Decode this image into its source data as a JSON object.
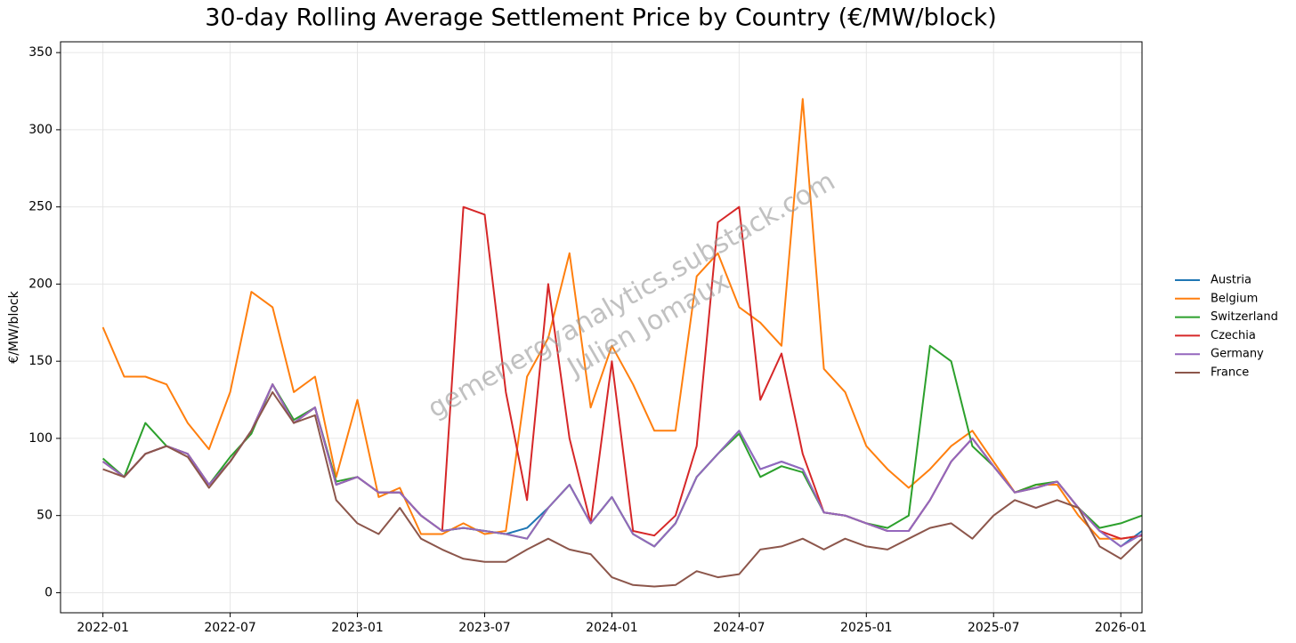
{
  "chart_data": {
    "type": "line",
    "title": "30-day Rolling Average Settlement Price by Country (€/MW/block)",
    "y_label": "€/MW/block",
    "watermark": [
      "gemenergyanalytics.substack.com",
      "Julien Jomaux"
    ],
    "x": [
      "2022-01",
      "2022-02",
      "2022-03",
      "2022-04",
      "2022-05",
      "2022-06",
      "2022-07",
      "2022-08",
      "2022-09",
      "2022-10",
      "2022-11",
      "2022-12",
      "2023-01",
      "2023-02",
      "2023-03",
      "2023-04",
      "2023-05",
      "2023-06",
      "2023-07",
      "2023-08",
      "2023-09",
      "2023-10",
      "2023-11",
      "2023-12",
      "2024-01",
      "2024-02",
      "2024-03",
      "2024-04",
      "2024-05",
      "2024-06",
      "2024-07",
      "2024-08",
      "2024-09",
      "2024-10",
      "2024-11",
      "2024-12",
      "2025-01",
      "2025-02",
      "2025-03",
      "2025-04",
      "2025-05",
      "2025-06",
      "2025-07",
      "2025-08",
      "2025-09",
      "2025-10",
      "2025-11",
      "2025-12",
      "2026-01",
      "2026-02"
    ],
    "series": [
      {
        "name": "Austria",
        "color": "#1f77b4",
        "values": [
          85,
          75,
          90,
          95,
          90,
          70,
          85,
          105,
          135,
          110,
          120,
          70,
          75,
          65,
          65,
          50,
          40,
          42,
          40,
          38,
          42,
          55,
          70,
          45,
          62,
          38,
          30,
          45,
          75,
          90,
          105,
          80,
          85,
          80,
          52,
          50,
          45,
          40,
          40,
          60,
          85,
          100,
          82,
          65,
          68,
          72,
          55,
          40,
          30,
          40
        ]
      },
      {
        "name": "Belgium",
        "color": "#ff7f0e",
        "values": [
          172,
          140,
          140,
          135,
          110,
          93,
          130,
          195,
          185,
          130,
          140,
          75,
          125,
          62,
          68,
          38,
          38,
          45,
          38,
          40,
          140,
          165,
          220,
          120,
          160,
          135,
          105,
          105,
          205,
          220,
          185,
          175,
          160,
          320,
          145,
          130,
          95,
          80,
          68,
          80,
          95,
          105,
          85,
          65,
          70,
          70,
          50,
          35,
          35,
          37
        ]
      },
      {
        "name": "Switzerland",
        "color": "#2ca02c",
        "values": [
          87,
          75,
          110,
          95,
          90,
          70,
          88,
          103,
          135,
          112,
          120,
          72,
          75,
          65,
          65,
          50,
          40,
          42,
          40,
          38,
          35,
          55,
          70,
          45,
          62,
          38,
          30,
          45,
          75,
          90,
          103,
          75,
          82,
          78,
          52,
          50,
          45,
          42,
          50,
          160,
          150,
          95,
          82,
          65,
          70,
          72,
          55,
          42,
          45,
          50
        ]
      },
      {
        "name": "Czechia",
        "color": "#d62728",
        "values": [
          85,
          75,
          90,
          95,
          90,
          70,
          85,
          105,
          135,
          110,
          120,
          70,
          75,
          65,
          65,
          50,
          40,
          250,
          245,
          130,
          60,
          200,
          100,
          45,
          150,
          40,
          37,
          50,
          95,
          240,
          250,
          125,
          155,
          90,
          52,
          50,
          45,
          40,
          40,
          60,
          85,
          100,
          82,
          65,
          68,
          72,
          55,
          40,
          35,
          37
        ]
      },
      {
        "name": "Germany",
        "color": "#9467bd",
        "values": [
          85,
          75,
          90,
          95,
          90,
          70,
          85,
          105,
          135,
          110,
          120,
          70,
          75,
          65,
          65,
          50,
          40,
          42,
          40,
          38,
          35,
          55,
          70,
          45,
          62,
          38,
          30,
          45,
          75,
          90,
          105,
          80,
          85,
          80,
          52,
          50,
          45,
          40,
          40,
          60,
          85,
          100,
          82,
          65,
          68,
          72,
          55,
          40,
          30,
          38
        ]
      },
      {
        "name": "France",
        "color": "#8c564b",
        "values": [
          80,
          75,
          90,
          95,
          88,
          68,
          85,
          105,
          130,
          110,
          115,
          60,
          45,
          38,
          55,
          35,
          28,
          22,
          20,
          20,
          28,
          35,
          28,
          25,
          10,
          5,
          4,
          5,
          14,
          10,
          12,
          28,
          30,
          35,
          28,
          35,
          30,
          28,
          35,
          42,
          45,
          35,
          50,
          60,
          55,
          60,
          55,
          30,
          22,
          35
        ]
      }
    ],
    "xlim": [
      "2021-11",
      "2026-02"
    ],
    "xticks": [
      "2022-01",
      "2022-07",
      "2023-01",
      "2023-07",
      "2024-01",
      "2024-07",
      "2025-01",
      "2025-07",
      "2026-01"
    ],
    "ylim": [
      -13,
      357
    ],
    "yticks": [
      0,
      50,
      100,
      150,
      200,
      250,
      300,
      350
    ],
    "grid": true,
    "legend": "right"
  }
}
